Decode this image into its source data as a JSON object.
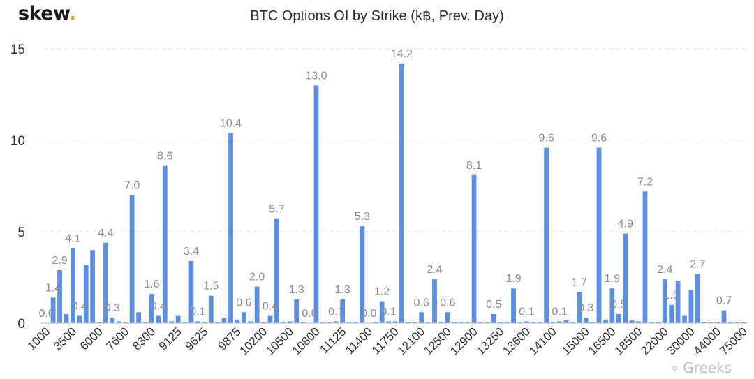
{
  "brand": {
    "name": "skew",
    "dot": ".",
    "accent": "#e0a800"
  },
  "watermark": {
    "icon": "wechat-icon",
    "text": "Greeks"
  },
  "colors": {
    "bar": "#5b8fe6",
    "label": "#8c8c8c",
    "grid": "#e0e0e0"
  },
  "chart_data": {
    "type": "bar",
    "title": "BTC Options OI by Strike (k฿, Prev. Day)",
    "xlabel": "",
    "ylabel": "",
    "ylim": [
      0,
      15
    ],
    "yticks": [
      0,
      5,
      10,
      15
    ],
    "grid": true,
    "x_tick_labels": [
      "1000",
      "3500",
      "6000",
      "7600",
      "8300",
      "9125",
      "9625",
      "9875",
      "10200",
      "10500",
      "10800",
      "11125",
      "11400",
      "11750",
      "12100",
      "12500",
      "12900",
      "13250",
      "13600",
      "14100",
      "15000",
      "16500",
      "18500",
      "22000",
      "30000",
      "44000",
      "75000"
    ],
    "values": [
      0.0,
      1.4,
      2.9,
      0.5,
      4.1,
      0.4,
      3.2,
      4.0,
      0.05,
      4.4,
      0.3,
      0.1,
      0.05,
      7.0,
      0.6,
      0.05,
      1.6,
      0.4,
      8.6,
      0.1,
      0.4,
      0.05,
      3.4,
      0.1,
      0.05,
      1.5,
      0.05,
      0.3,
      10.4,
      0.2,
      0.6,
      0.1,
      2.0,
      0.05,
      0.4,
      5.7,
      0.05,
      0.1,
      1.3,
      0.05,
      0.0,
      13.0,
      0.05,
      0.05,
      0.1,
      1.3,
      0.05,
      0.05,
      5.3,
      0.0,
      0.05,
      1.2,
      0.1,
      0.1,
      14.2,
      0.05,
      0.05,
      0.6,
      0.05,
      2.4,
      0.05,
      0.6,
      0.05,
      0.05,
      0.05,
      8.1,
      0.05,
      0.05,
      0.5,
      0.05,
      0.05,
      1.9,
      0.05,
      0.1,
      0.05,
      0.05,
      9.6,
      0.05,
      0.1,
      0.15,
      0.05,
      1.7,
      0.3,
      0.05,
      9.6,
      0.2,
      1.9,
      0.5,
      4.9,
      0.15,
      0.1,
      7.2,
      0.05,
      0.05,
      2.4,
      1.0,
      2.3,
      0.4,
      1.8,
      2.7,
      0.05,
      0.05,
      0.05,
      0.7,
      0.05,
      0.05,
      0.05
    ],
    "data_labels": {
      "0": "0.0",
      "1": "1.4",
      "2": "2.9",
      "4": "4.1",
      "5": "0.4",
      "9": "4.4",
      "10": "0.3",
      "13": "7.0",
      "16": "1.6",
      "17": "0.4",
      "18": "8.6",
      "22": "3.4",
      "23": "0.1",
      "25": "1.5",
      "28": "10.4",
      "30": "0.6",
      "32": "2.0",
      "34": "0.4",
      "35": "5.7",
      "38": "1.3",
      "40": "0.0",
      "41": "13.0",
      "44": "0.1",
      "45": "1.3",
      "48": "5.3",
      "49": "0.0",
      "51": "1.2",
      "52": "0.1",
      "54": "14.2",
      "57": "0.6",
      "59": "2.4",
      "61": "0.6",
      "65": "8.1",
      "68": "0.5",
      "71": "1.9",
      "73": "0.1",
      "76": "9.6",
      "78": "0.1",
      "81": "1.7",
      "82": "0.3",
      "84": "9.6",
      "86": "1.9",
      "87": "0.5",
      "88": "4.9",
      "91": "7.2",
      "94": "2.4",
      "95": "1.0",
      "99": "2.7",
      "103": "0.7"
    }
  }
}
